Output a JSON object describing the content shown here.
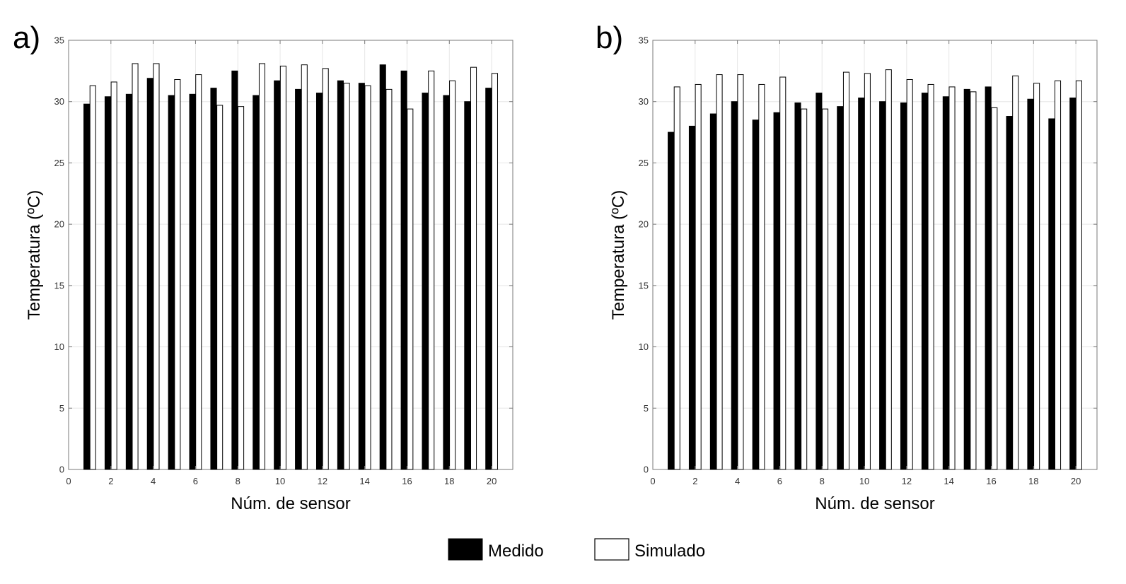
{
  "chart_data": [
    {
      "panel_label": "a)",
      "type": "bar",
      "xlabel": "Núm. de sensor",
      "ylabel": "Temperatura (ºC)",
      "xlim": [
        0,
        21
      ],
      "ylim": [
        0,
        35
      ],
      "xticks": [
        "0",
        "2",
        "4",
        "6",
        "8",
        "10",
        "12",
        "14",
        "16",
        "18",
        "20"
      ],
      "yticks": [
        "0",
        "5",
        "10",
        "15",
        "20",
        "25",
        "30",
        "35"
      ],
      "grid": true,
      "categories": [
        1,
        2,
        3,
        4,
        5,
        6,
        7,
        8,
        9,
        10,
        11,
        12,
        13,
        14,
        15,
        16,
        17,
        18,
        19,
        20
      ],
      "series": [
        {
          "name": "Medido",
          "color": "#000000",
          "values": [
            29.8,
            30.4,
            30.6,
            31.9,
            30.5,
            30.6,
            31.1,
            32.5,
            30.5,
            31.7,
            31.0,
            30.7,
            31.7,
            31.5,
            33.0,
            32.5,
            30.7,
            30.5,
            30.0,
            31.1
          ]
        },
        {
          "name": "Simulado",
          "color": "#ffffff",
          "values": [
            31.3,
            31.6,
            33.1,
            33.1,
            31.8,
            32.2,
            29.7,
            29.6,
            33.1,
            32.9,
            33.0,
            32.7,
            31.5,
            31.3,
            31.0,
            29.4,
            32.5,
            31.7,
            32.8,
            32.3
          ]
        }
      ]
    },
    {
      "panel_label": "b)",
      "type": "bar",
      "xlabel": "Núm. de sensor",
      "ylabel": "Temperatura (ºC)",
      "xlim": [
        0,
        21
      ],
      "ylim": [
        0,
        35
      ],
      "xticks": [
        "0",
        "2",
        "4",
        "6",
        "8",
        "10",
        "12",
        "14",
        "16",
        "18",
        "20"
      ],
      "yticks": [
        "0",
        "5",
        "10",
        "15",
        "20",
        "25",
        "30",
        "35"
      ],
      "grid": true,
      "categories": [
        1,
        2,
        3,
        4,
        5,
        6,
        7,
        8,
        9,
        10,
        11,
        12,
        13,
        14,
        15,
        16,
        17,
        18,
        19,
        20
      ],
      "series": [
        {
          "name": "Medido",
          "color": "#000000",
          "values": [
            27.5,
            28.0,
            29.0,
            30.0,
            28.5,
            29.1,
            29.9,
            30.7,
            29.6,
            30.3,
            30.0,
            29.9,
            30.7,
            30.4,
            31.0,
            31.2,
            28.8,
            30.2,
            28.6,
            30.3
          ]
        },
        {
          "name": "Simulado",
          "color": "#ffffff",
          "values": [
            31.2,
            31.4,
            32.2,
            32.2,
            31.4,
            32.0,
            29.4,
            29.4,
            32.4,
            32.3,
            32.6,
            31.8,
            31.4,
            31.2,
            30.8,
            29.5,
            32.1,
            31.5,
            31.7,
            31.7
          ]
        }
      ]
    }
  ],
  "legend": {
    "items": [
      {
        "label": "Medido",
        "color": "#000000"
      },
      {
        "label": "Simulado",
        "color": "#ffffff"
      }
    ]
  }
}
